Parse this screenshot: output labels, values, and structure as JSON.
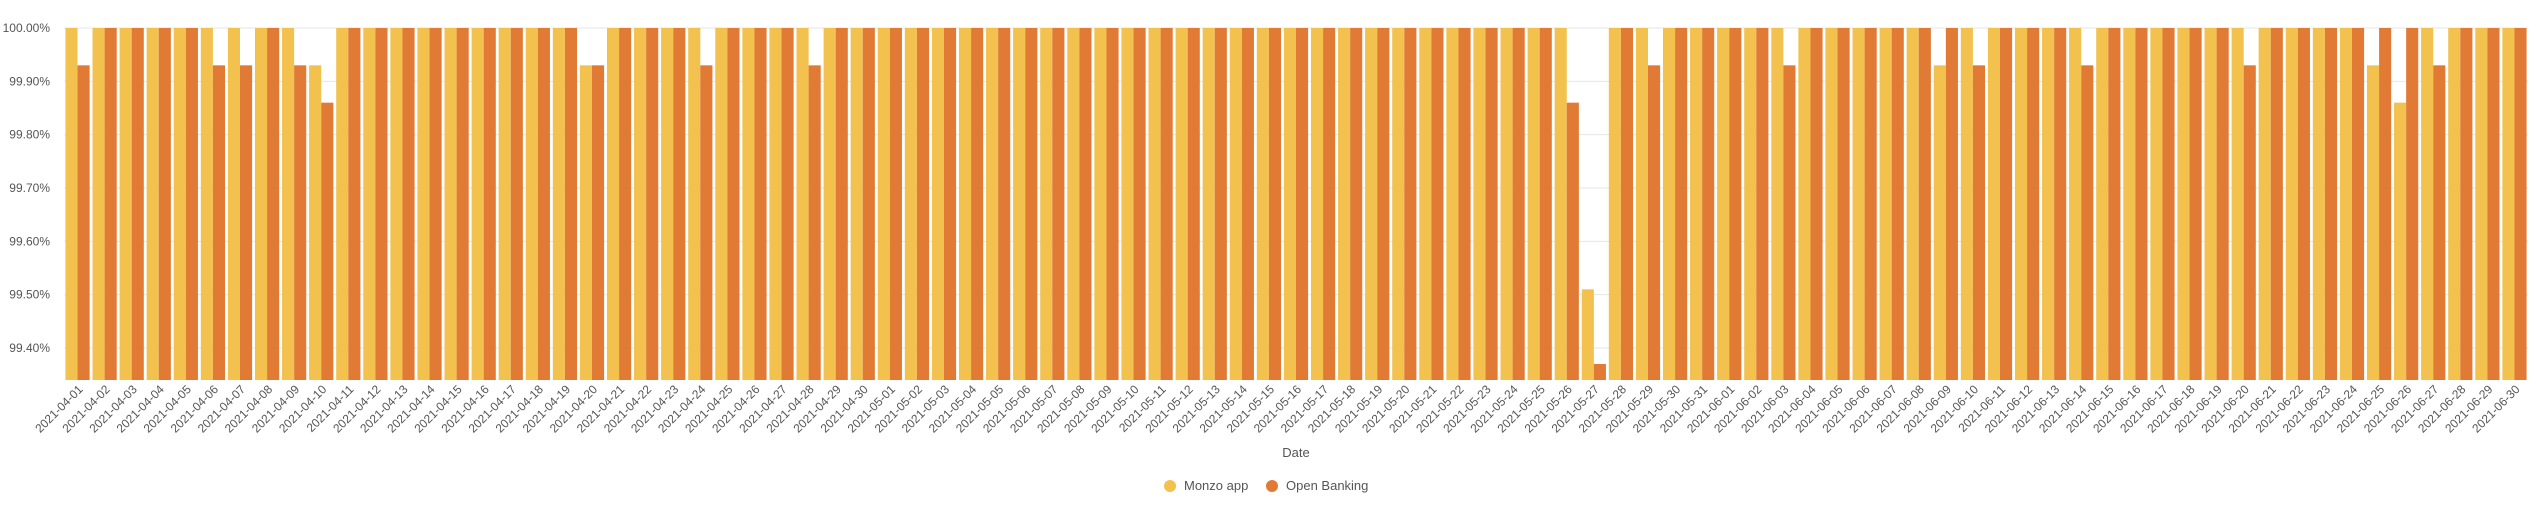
{
  "chart_data": {
    "type": "bar",
    "xlabel": "Date",
    "ylabel": "",
    "ylim": [
      99.34,
      100.0
    ],
    "yticks": [
      "100.00%",
      "99.90%",
      "99.80%",
      "99.70%",
      "99.60%",
      "99.50%",
      "99.40%"
    ],
    "ytick_values": [
      100.0,
      99.9,
      99.8,
      99.7,
      99.6,
      99.5,
      99.4
    ],
    "grid": true,
    "legend_position": "bottom-center",
    "categories": [
      "2021-04-01",
      "2021-04-02",
      "2021-04-03",
      "2021-04-04",
      "2021-04-05",
      "2021-04-06",
      "2021-04-07",
      "2021-04-08",
      "2021-04-09",
      "2021-04-10",
      "2021-04-11",
      "2021-04-12",
      "2021-04-13",
      "2021-04-14",
      "2021-04-15",
      "2021-04-16",
      "2021-04-17",
      "2021-04-18",
      "2021-04-19",
      "2021-04-20",
      "2021-04-21",
      "2021-04-22",
      "2021-04-23",
      "2021-04-24",
      "2021-04-25",
      "2021-04-26",
      "2021-04-27",
      "2021-04-28",
      "2021-04-29",
      "2021-04-30",
      "2021-05-01",
      "2021-05-02",
      "2021-05-03",
      "2021-05-04",
      "2021-05-05",
      "2021-05-06",
      "2021-05-07",
      "2021-05-08",
      "2021-05-09",
      "2021-05-10",
      "2021-05-11",
      "2021-05-12",
      "2021-05-13",
      "2021-05-14",
      "2021-05-15",
      "2021-05-16",
      "2021-05-17",
      "2021-05-18",
      "2021-05-19",
      "2021-05-20",
      "2021-05-21",
      "2021-05-22",
      "2021-05-23",
      "2021-05-24",
      "2021-05-25",
      "2021-05-26",
      "2021-05-27",
      "2021-05-28",
      "2021-05-29",
      "2021-05-30",
      "2021-05-31",
      "2021-06-01",
      "2021-06-02",
      "2021-06-03",
      "2021-06-04",
      "2021-06-05",
      "2021-06-06",
      "2021-06-07",
      "2021-06-08",
      "2021-06-09",
      "2021-06-10",
      "2021-06-11",
      "2021-06-12",
      "2021-06-13",
      "2021-06-14",
      "2021-06-15",
      "2021-06-16",
      "2021-06-17",
      "2021-06-18",
      "2021-06-19",
      "2021-06-20",
      "2021-06-21",
      "2021-06-22",
      "2021-06-23",
      "2021-06-24",
      "2021-06-25",
      "2021-06-26",
      "2021-06-27",
      "2021-06-28",
      "2021-06-29",
      "2021-06-30"
    ],
    "series": [
      {
        "name": "Monzo app",
        "color": "#f2c14e",
        "values": [
          100,
          100,
          100,
          100,
          100,
          100,
          100,
          100,
          100,
          99.93,
          100,
          100,
          100,
          100,
          100,
          100,
          100,
          100,
          100,
          99.93,
          100,
          100,
          100,
          100,
          100,
          100,
          100,
          100,
          100,
          100,
          100,
          100,
          100,
          100,
          100,
          100,
          100,
          100,
          100,
          100,
          100,
          100,
          100,
          100,
          100,
          100,
          100,
          100,
          100,
          100,
          100,
          100,
          100,
          100,
          100,
          100,
          99.51,
          100,
          100,
          100,
          100,
          100,
          100,
          100,
          100,
          100,
          100,
          100,
          100,
          99.93,
          100,
          100,
          100,
          100,
          100,
          100,
          100,
          100,
          100,
          100,
          100,
          100,
          100,
          100,
          100,
          99.93,
          99.86,
          100,
          100,
          100,
          100
        ]
      },
      {
        "name": "Open Banking",
        "color": "#e07a35",
        "values": [
          99.93,
          100,
          100,
          100,
          100,
          99.93,
          99.93,
          100,
          99.93,
          99.86,
          100,
          100,
          100,
          100,
          100,
          100,
          100,
          100,
          100,
          99.93,
          100,
          100,
          100,
          99.93,
          100,
          100,
          100,
          99.93,
          100,
          100,
          100,
          100,
          100,
          100,
          100,
          100,
          100,
          100,
          100,
          100,
          100,
          100,
          100,
          100,
          100,
          100,
          100,
          100,
          100,
          100,
          100,
          100,
          100,
          100,
          100,
          99.86,
          99.37,
          100,
          99.93,
          100,
          100,
          100,
          100,
          99.93,
          100,
          100,
          100,
          100,
          100,
          100,
          99.93,
          100,
          100,
          100,
          99.93,
          100,
          100,
          100,
          100,
          100,
          99.93,
          100,
          100,
          100,
          100,
          100,
          100,
          99.93,
          100,
          100,
          100
        ]
      }
    ]
  }
}
